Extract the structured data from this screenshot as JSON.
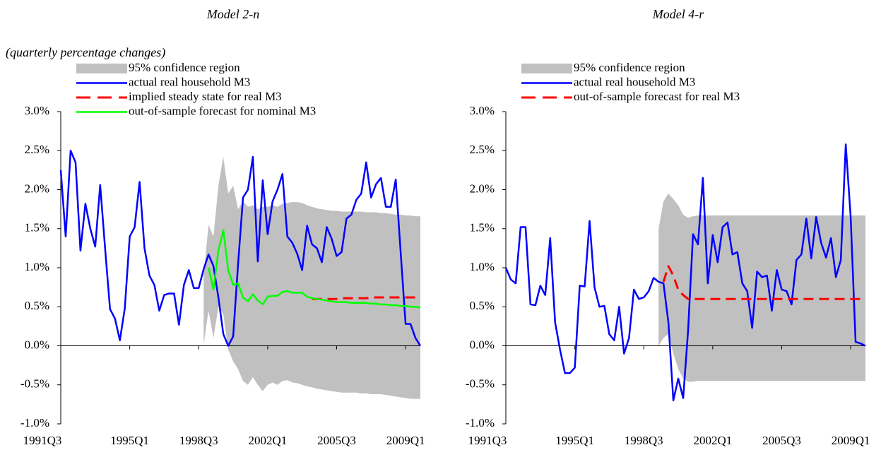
{
  "chart_data": [
    {
      "type": "line",
      "title": "Model 2-n",
      "subtitle": "(quarterly percentage changes)",
      "x": [
        1991.5,
        1991.75,
        1992,
        1992.25,
        1992.5,
        1992.75,
        1993,
        1993.25,
        1993.5,
        1993.75,
        1994,
        1994.25,
        1994.5,
        1994.75,
        1995,
        1995.25,
        1995.5,
        1995.75,
        1996,
        1996.25,
        1996.5,
        1996.75,
        1997,
        1997.25,
        1997.5,
        1997.75,
        1998,
        1998.25,
        1998.5,
        1998.75,
        1999,
        1999.25,
        1999.5,
        1999.75,
        2000,
        2000.25,
        2000.5,
        2000.75,
        2001,
        2001.25,
        2001.5,
        2001.75,
        2002,
        2002.25,
        2002.5,
        2002.75,
        2003,
        2003.25,
        2003.5,
        2003.75,
        2004,
        2004.25,
        2004.5,
        2004.75,
        2005,
        2005.25,
        2005.5,
        2005.75,
        2006,
        2006.25,
        2006.5,
        2006.75,
        2007,
        2007.25,
        2007.5,
        2007.75,
        2008,
        2008.25,
        2008.5,
        2008.75,
        2009,
        2009.25,
        2009.5,
        2009.75
      ],
      "xlim": [
        1991.5,
        2009.75
      ],
      "xticks": [
        {
          "value": 1991.5,
          "label": "1991Q3"
        },
        {
          "value": 1995,
          "label": "1995Q1"
        },
        {
          "value": 1998.5,
          "label": "1998Q3"
        },
        {
          "value": 2002,
          "label": "2002Q1"
        },
        {
          "value": 2005.5,
          "label": "2005Q3"
        },
        {
          "value": 2009,
          "label": "2009Q1"
        }
      ],
      "ylim": [
        -1,
        3
      ],
      "yticks": [
        {
          "value": 3,
          "label": "3.0%"
        },
        {
          "value": 2.5,
          "label": "2.5%"
        },
        {
          "value": 2,
          "label": "2.0%"
        },
        {
          "value": 1.5,
          "label": "1.5%"
        },
        {
          "value": 1,
          "label": "1.0%"
        },
        {
          "value": 0.5,
          "label": "0.5%"
        },
        {
          "value": 0,
          "label": "0.0%"
        },
        {
          "value": -0.5,
          "label": "-0.5%"
        },
        {
          "value": -1,
          "label": "-1.0%"
        }
      ],
      "series": [
        {
          "name": "95% confidence region",
          "type": "band",
          "color": "#c0c0c0",
          "low": [
            null,
            null,
            null,
            null,
            null,
            null,
            null,
            null,
            null,
            null,
            null,
            null,
            null,
            null,
            null,
            null,
            null,
            null,
            null,
            null,
            null,
            null,
            null,
            null,
            null,
            null,
            null,
            null,
            null,
            0.02,
            0.45,
            0.1,
            0.5,
            0.4,
            -0.05,
            -0.2,
            -0.3,
            -0.45,
            -0.5,
            -0.4,
            -0.5,
            -0.58,
            -0.5,
            -0.47,
            -0.5,
            -0.45,
            -0.44,
            -0.47,
            -0.48,
            -0.5,
            -0.52,
            -0.53,
            -0.55,
            -0.56,
            -0.57,
            -0.58,
            -0.59,
            -0.6,
            -0.6,
            -0.6,
            -0.6,
            -0.61,
            -0.61,
            -0.62,
            -0.62,
            -0.62,
            -0.63,
            -0.64,
            -0.65,
            -0.66,
            -0.67,
            -0.68,
            -0.68,
            -0.68
          ],
          "high": [
            null,
            null,
            null,
            null,
            null,
            null,
            null,
            null,
            null,
            null,
            null,
            null,
            null,
            null,
            null,
            null,
            null,
            null,
            null,
            null,
            null,
            null,
            null,
            null,
            null,
            null,
            null,
            null,
            null,
            0.9,
            1.55,
            1.4,
            2.05,
            2.42,
            1.95,
            2.05,
            1.75,
            1.85,
            1.78,
            1.8,
            1.75,
            1.78,
            1.78,
            1.8,
            1.78,
            1.82,
            1.83,
            1.84,
            1.84,
            1.83,
            1.8,
            1.78,
            1.76,
            1.75,
            1.74,
            1.73,
            1.73,
            1.72,
            1.72,
            1.72,
            1.72,
            1.72,
            1.71,
            1.71,
            1.71,
            1.7,
            1.7,
            1.69,
            1.68,
            1.68,
            1.67,
            1.67,
            1.66,
            1.66
          ]
        },
        {
          "name": "actual real household M3",
          "color": "#0000ff",
          "values": [
            2.25,
            1.4,
            2.5,
            2.35,
            1.22,
            1.82,
            1.5,
            1.27,
            2.06,
            1.25,
            0.47,
            0.35,
            0.07,
            0.48,
            1.4,
            1.52,
            2.1,
            1.25,
            0.9,
            0.78,
            0.45,
            0.65,
            0.67,
            0.67,
            0.27,
            0.78,
            0.97,
            0.74,
            0.74,
            0.98,
            1.17,
            1.02,
            0.62,
            0.15,
            0.0,
            0.12,
            1.05,
            1.9,
            2.0,
            2.42,
            1.08,
            2.12,
            1.43,
            1.85,
            2.0,
            2.2,
            1.4,
            1.32,
            1.18,
            0.97,
            1.54,
            1.3,
            1.25,
            1.07,
            1.52,
            1.37,
            1.15,
            1.2,
            1.63,
            1.68,
            1.87,
            1.95,
            2.35,
            1.9,
            2.07,
            2.15,
            1.78,
            1.78,
            2.13,
            1.2,
            0.28,
            0.28,
            0.1,
            0.0
          ]
        },
        {
          "name": "implied steady state for real M3",
          "color": "#ff0000",
          "dashed": true,
          "values": [
            null,
            null,
            null,
            null,
            null,
            null,
            null,
            null,
            null,
            null,
            null,
            null,
            null,
            null,
            null,
            null,
            null,
            null,
            null,
            null,
            null,
            null,
            null,
            null,
            null,
            null,
            null,
            null,
            null,
            null,
            null,
            null,
            null,
            null,
            null,
            null,
            null,
            null,
            null,
            null,
            null,
            null,
            null,
            null,
            null,
            null,
            null,
            null,
            null,
            null,
            null,
            0.6,
            0.6,
            0.6,
            0.6,
            0.6,
            0.6,
            0.61,
            0.61,
            0.61,
            0.61,
            0.61,
            0.61,
            0.62,
            0.62,
            0.62,
            0.62,
            0.62,
            0.62,
            0.62,
            0.62,
            0.62,
            0.62,
            0.62
          ]
        },
        {
          "name": "out-of-sample forecast for nominal M3",
          "color": "#00ff00",
          "values": [
            null,
            null,
            null,
            null,
            null,
            null,
            null,
            null,
            null,
            null,
            null,
            null,
            null,
            null,
            null,
            null,
            null,
            null,
            null,
            null,
            null,
            null,
            null,
            null,
            null,
            null,
            null,
            null,
            null,
            null,
            1.0,
            0.72,
            1.22,
            1.48,
            0.97,
            0.78,
            0.8,
            0.62,
            0.57,
            0.66,
            0.58,
            0.53,
            0.63,
            0.64,
            0.64,
            0.69,
            0.7,
            0.68,
            0.68,
            0.68,
            0.63,
            0.61,
            0.6,
            0.59,
            0.58,
            0.57,
            0.56,
            0.56,
            0.56,
            0.55,
            0.55,
            0.55,
            0.55,
            0.54,
            0.54,
            0.53,
            0.53,
            0.52,
            0.52,
            0.51,
            0.51,
            0.5,
            0.5,
            0.49
          ]
        }
      ]
    },
    {
      "type": "line",
      "title": "Model 4-r",
      "x": [
        1991.5,
        1991.75,
        1992,
        1992.25,
        1992.5,
        1992.75,
        1993,
        1993.25,
        1993.5,
        1993.75,
        1994,
        1994.25,
        1994.5,
        1994.75,
        1995,
        1995.25,
        1995.5,
        1995.75,
        1996,
        1996.25,
        1996.5,
        1996.75,
        1997,
        1997.25,
        1997.5,
        1997.75,
        1998,
        1998.25,
        1998.5,
        1998.75,
        1999,
        1999.25,
        1999.5,
        1999.75,
        2000,
        2000.25,
        2000.5,
        2000.75,
        2001,
        2001.25,
        2001.5,
        2001.75,
        2002,
        2002.25,
        2002.5,
        2002.75,
        2003,
        2003.25,
        2003.5,
        2003.75,
        2004,
        2004.25,
        2004.5,
        2004.75,
        2005,
        2005.25,
        2005.5,
        2005.75,
        2006,
        2006.25,
        2006.5,
        2006.75,
        2007,
        2007.25,
        2007.5,
        2007.75,
        2008,
        2008.25,
        2008.5,
        2008.75,
        2009,
        2009.25,
        2009.5,
        2009.75
      ],
      "xlim": [
        1991.5,
        2009.75
      ],
      "xticks": [
        {
          "value": 1991.5,
          "label": "1991Q3"
        },
        {
          "value": 1995,
          "label": "1995Q1"
        },
        {
          "value": 1998.5,
          "label": "1998Q3"
        },
        {
          "value": 2002,
          "label": "2002Q1"
        },
        {
          "value": 2005.5,
          "label": "2005Q3"
        },
        {
          "value": 2009,
          "label": "2009Q1"
        }
      ],
      "ylim": [
        -1,
        3
      ],
      "yticks": [
        {
          "value": 3,
          "label": "3.0%"
        },
        {
          "value": 2.5,
          "label": "2.5%"
        },
        {
          "value": 2,
          "label": "2.0%"
        },
        {
          "value": 1.5,
          "label": "1.5%"
        },
        {
          "value": 1,
          "label": "1.0%"
        },
        {
          "value": 0.5,
          "label": "0.5%"
        },
        {
          "value": 0,
          "label": "0.0%"
        },
        {
          "value": -0.5,
          "label": "-0.5%"
        },
        {
          "value": -1,
          "label": "-1.0%"
        }
      ],
      "series": [
        {
          "name": "95% confidence region",
          "type": "band",
          "color": "#c0c0c0",
          "low": [
            null,
            null,
            null,
            null,
            null,
            null,
            null,
            null,
            null,
            null,
            null,
            null,
            null,
            null,
            null,
            null,
            null,
            null,
            null,
            null,
            null,
            null,
            null,
            null,
            null,
            null,
            null,
            null,
            null,
            null,
            null,
            0.0,
            0.1,
            0.15,
            -0.1,
            -0.3,
            -0.42,
            -0.46,
            -0.46,
            -0.45,
            -0.45,
            -0.45,
            -0.45,
            -0.45,
            -0.45,
            -0.45,
            -0.45,
            -0.45,
            -0.45,
            -0.45,
            -0.45,
            -0.45,
            -0.45,
            -0.45,
            -0.45,
            -0.45,
            -0.45,
            -0.45,
            -0.45,
            -0.45,
            -0.45,
            -0.45,
            -0.45,
            -0.45,
            -0.45,
            -0.45,
            -0.45,
            -0.45,
            -0.45,
            -0.45,
            -0.45,
            -0.45,
            -0.45,
            -0.45
          ],
          "high": [
            null,
            null,
            null,
            null,
            null,
            null,
            null,
            null,
            null,
            null,
            null,
            null,
            null,
            null,
            null,
            null,
            null,
            null,
            null,
            null,
            null,
            null,
            null,
            null,
            null,
            null,
            null,
            null,
            null,
            null,
            null,
            1.5,
            1.85,
            1.95,
            1.88,
            1.8,
            1.68,
            1.64,
            1.66,
            1.67,
            1.67,
            1.67,
            1.67,
            1.67,
            1.67,
            1.67,
            1.67,
            1.67,
            1.67,
            1.67,
            1.67,
            1.67,
            1.67,
            1.67,
            1.67,
            1.67,
            1.67,
            1.67,
            1.67,
            1.67,
            1.67,
            1.67,
            1.67,
            1.67,
            1.67,
            1.67,
            1.67,
            1.67,
            1.67,
            1.67,
            1.67,
            1.67,
            1.67,
            1.67
          ]
        },
        {
          "name": "actual real household M3",
          "color": "#0000ff",
          "values": [
            1.0,
            0.85,
            0.8,
            1.52,
            1.52,
            0.53,
            0.52,
            0.77,
            0.65,
            1.38,
            0.3,
            -0.05,
            -0.35,
            -0.35,
            -0.28,
            0.77,
            0.76,
            1.6,
            0.75,
            0.5,
            0.51,
            0.15,
            0.07,
            0.5,
            -0.1,
            0.1,
            0.72,
            0.6,
            0.62,
            0.7,
            0.87,
            0.82,
            0.8,
            0.3,
            -0.7,
            -0.42,
            -0.67,
            0.2,
            1.43,
            1.3,
            2.15,
            0.8,
            1.42,
            1.07,
            1.52,
            1.58,
            1.17,
            1.2,
            0.8,
            0.7,
            0.23,
            0.95,
            0.88,
            0.9,
            0.45,
            0.97,
            0.72,
            0.7,
            0.53,
            1.1,
            1.17,
            1.63,
            1.12,
            1.65,
            1.32,
            1.13,
            1.38,
            0.88,
            1.1,
            2.58,
            1.65,
            0.05,
            0.03,
            0.0
          ]
        },
        {
          "name": "out-of-sample forecast for real M3",
          "color": "#ff0000",
          "dashed": true,
          "values": [
            null,
            null,
            null,
            null,
            null,
            null,
            null,
            null,
            null,
            null,
            null,
            null,
            null,
            null,
            null,
            null,
            null,
            null,
            null,
            null,
            null,
            null,
            null,
            null,
            null,
            null,
            null,
            null,
            null,
            null,
            null,
            null,
            0.82,
            1.02,
            0.9,
            0.72,
            0.65,
            0.6,
            0.6,
            0.6,
            0.6,
            0.6,
            0.6,
            0.6,
            0.6,
            0.6,
            0.6,
            0.6,
            0.6,
            0.6,
            0.6,
            0.6,
            0.6,
            0.6,
            0.6,
            0.6,
            0.6,
            0.6,
            0.6,
            0.6,
            0.6,
            0.6,
            0.6,
            0.6,
            0.6,
            0.6,
            0.6,
            0.6,
            0.6,
            0.6,
            0.6,
            0.6,
            0.6,
            0.6
          ]
        }
      ]
    }
  ]
}
